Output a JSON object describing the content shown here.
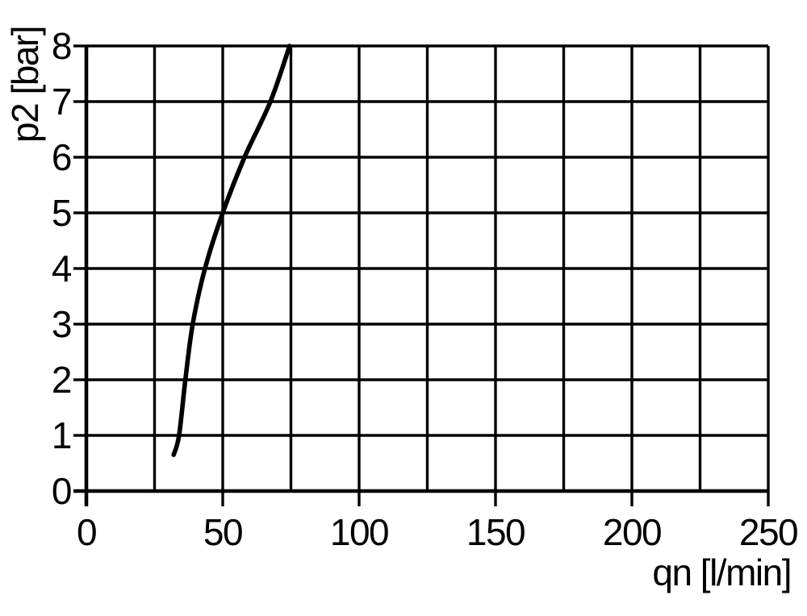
{
  "chart_data": {
    "type": "line",
    "title": "",
    "xlabel": "qn [l/min]",
    "ylabel": "p2 [bar]",
    "xlim": [
      0,
      250
    ],
    "ylim": [
      0,
      8
    ],
    "x_major_ticks": [
      0,
      50,
      100,
      150,
      200,
      250
    ],
    "x_grid_step": 25,
    "y_ticks": [
      0,
      1,
      2,
      3,
      4,
      5,
      6,
      7,
      8
    ],
    "y_grid_step": 1,
    "grid": true,
    "legend": false,
    "line_color": "#000000",
    "background_color": "#ffffff",
    "series": [
      {
        "points": [
          [
            32,
            0.65
          ],
          [
            34,
            1
          ],
          [
            36.3,
            2
          ],
          [
            39,
            3
          ],
          [
            43.5,
            4
          ],
          [
            50,
            5
          ],
          [
            58,
            6
          ],
          [
            67.5,
            7
          ],
          [
            74.5,
            8
          ]
        ]
      }
    ]
  }
}
